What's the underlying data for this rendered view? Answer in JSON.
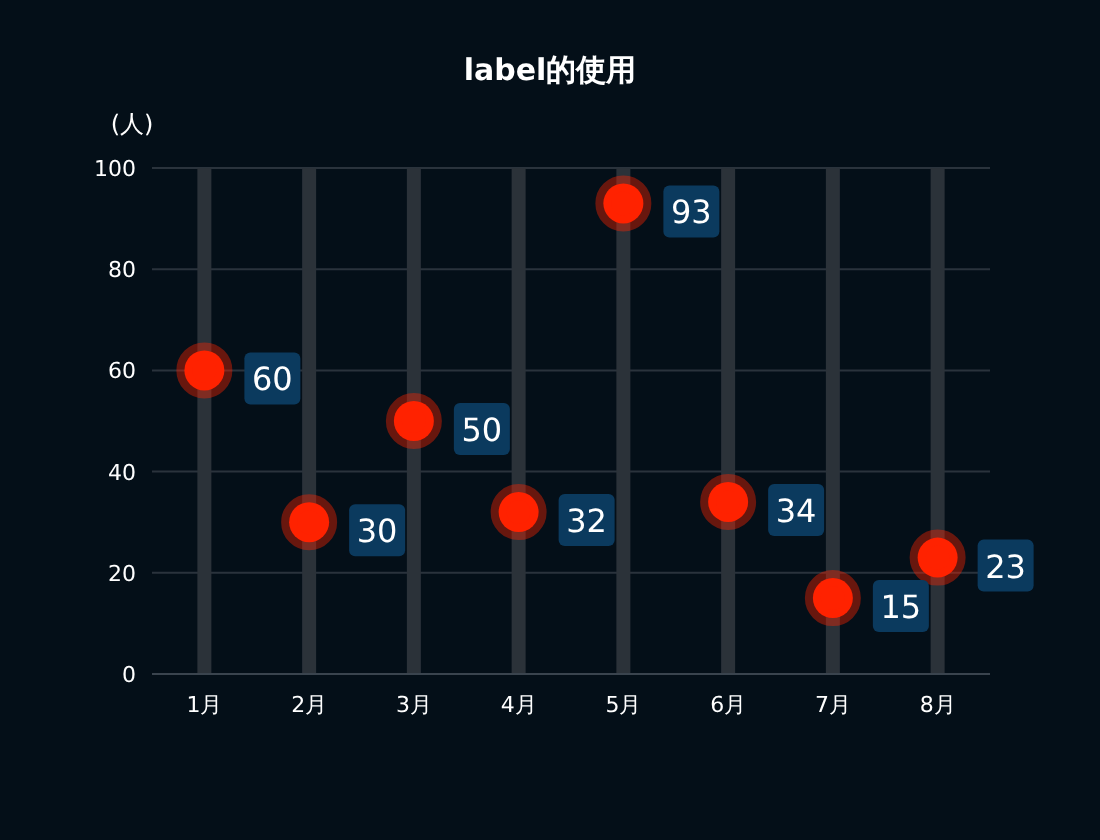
{
  "chart_data": {
    "type": "scatter",
    "title": "label的使用",
    "ylabel": "(人)",
    "categories": [
      "1月",
      "2月",
      "3月",
      "4月",
      "5月",
      "6月",
      "7月",
      "8月"
    ],
    "series": [
      {
        "type": "bar",
        "color": "#2b3239",
        "values": [
          100,
          100,
          100,
          100,
          100,
          100,
          100,
          100
        ]
      },
      {
        "color": "#ff2200",
        "values": [
          60,
          30,
          50,
          32,
          93,
          34,
          15,
          23
        ],
        "data_labels": true
      }
    ],
    "ylim": [
      0,
      100
    ],
    "yticks": [
      0,
      20,
      40,
      60,
      80,
      100
    ],
    "grid": "y",
    "marker": "circle"
  }
}
